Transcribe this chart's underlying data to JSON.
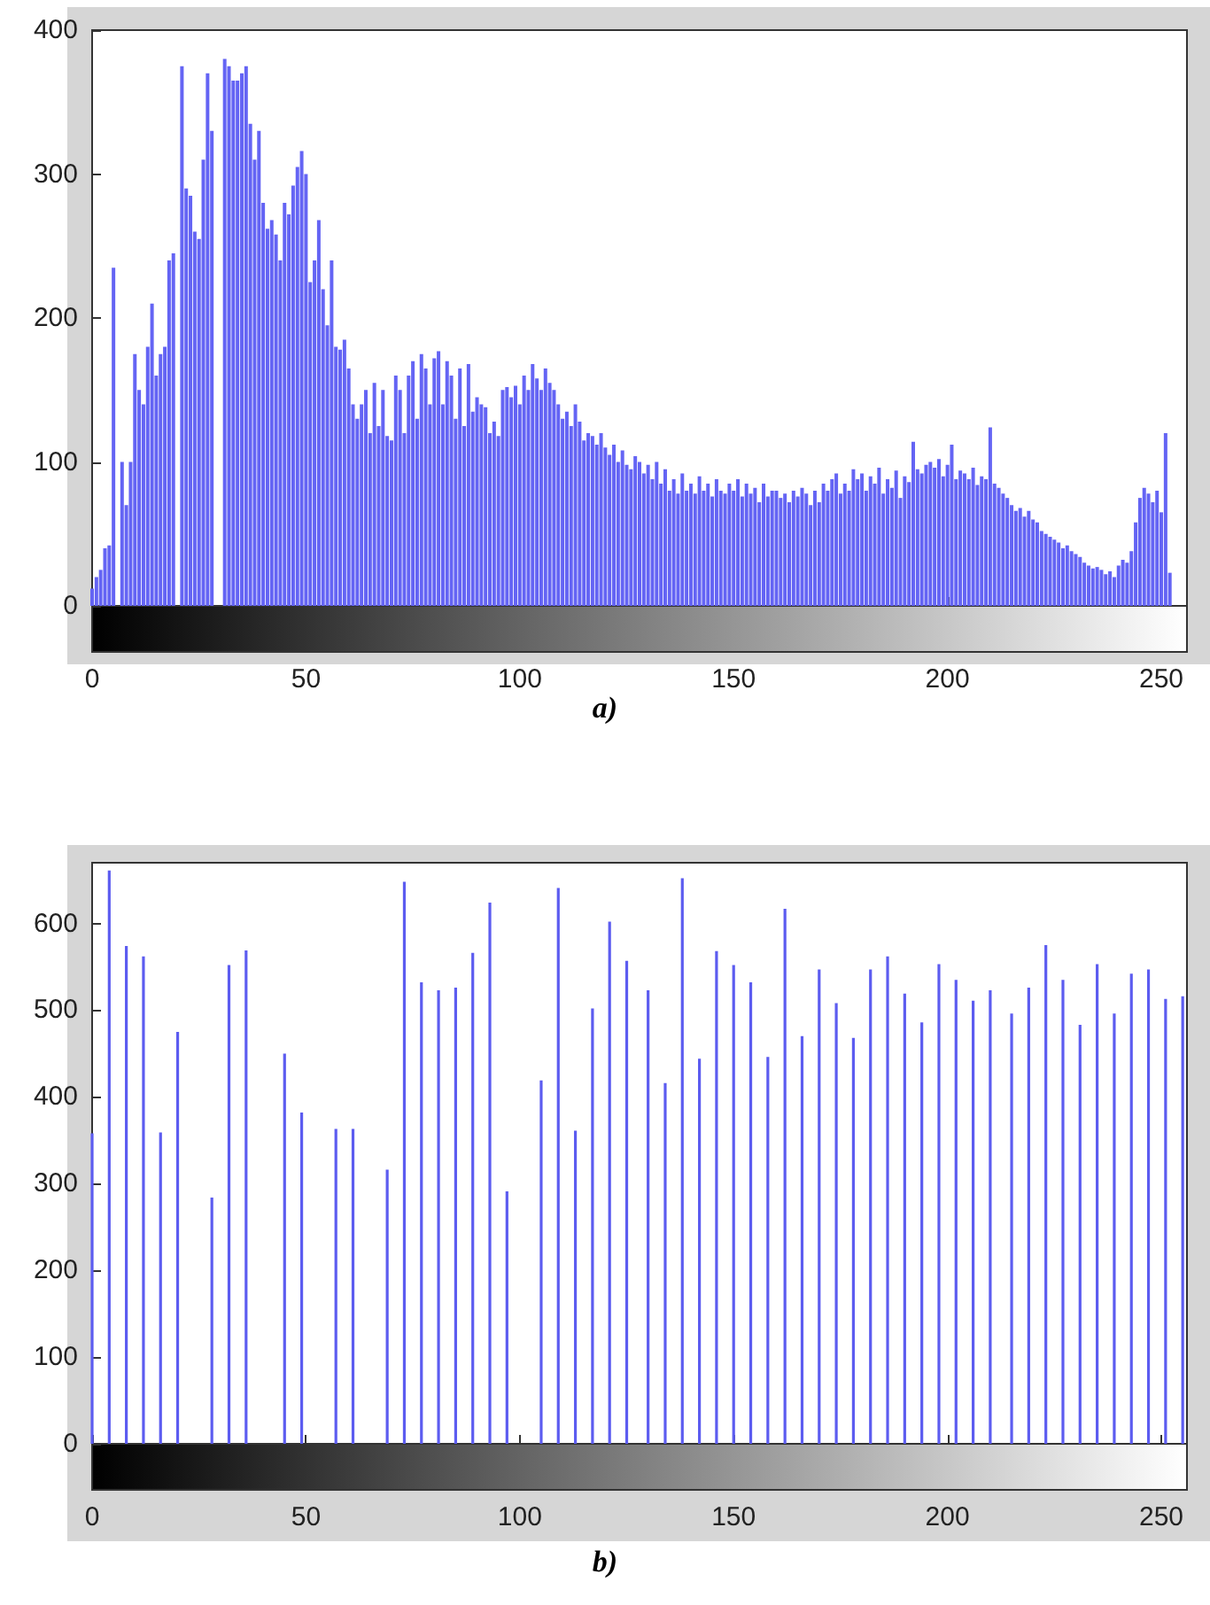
{
  "chart_data": [
    {
      "type": "bar",
      "color": "#6464f4",
      "xlim": [
        0,
        256
      ],
      "xticks": [
        0,
        50,
        100,
        150,
        200,
        250
      ],
      "ylim": [
        0,
        400
      ],
      "yticks": [
        0,
        100,
        200,
        300,
        400
      ],
      "annotations": [
        "a)"
      ],
      "x": [
        0,
        1,
        2,
        3,
        4,
        5,
        6,
        7,
        8,
        9,
        10,
        11,
        12,
        13,
        14,
        15,
        16,
        17,
        18,
        19,
        20,
        21,
        22,
        23,
        24,
        25,
        26,
        27,
        28,
        29,
        30,
        31,
        32,
        33,
        34,
        35,
        36,
        37,
        38,
        39,
        40,
        41,
        42,
        43,
        44,
        45,
        46,
        47,
        48,
        49,
        50,
        51,
        52,
        53,
        54,
        55,
        56,
        57,
        58,
        59,
        60,
        61,
        62,
        63,
        64,
        65,
        66,
        67,
        68,
        69,
        70,
        71,
        72,
        73,
        74,
        75,
        76,
        77,
        78,
        79,
        80,
        81,
        82,
        83,
        84,
        85,
        86,
        87,
        88,
        89,
        90,
        91,
        92,
        93,
        94,
        95,
        96,
        97,
        98,
        99,
        100,
        101,
        102,
        103,
        104,
        105,
        106,
        107,
        108,
        109,
        110,
        111,
        112,
        113,
        114,
        115,
        116,
        117,
        118,
        119,
        120,
        121,
        122,
        123,
        124,
        125,
        126,
        127,
        128,
        129,
        130,
        131,
        132,
        133,
        134,
        135,
        136,
        137,
        138,
        139,
        140,
        141,
        142,
        143,
        144,
        145,
        146,
        147,
        148,
        149,
        150,
        151,
        152,
        153,
        154,
        155,
        156,
        157,
        158,
        159,
        160,
        161,
        162,
        163,
        164,
        165,
        166,
        167,
        168,
        169,
        170,
        171,
        172,
        173,
        174,
        175,
        176,
        177,
        178,
        179,
        180,
        181,
        182,
        183,
        184,
        185,
        186,
        187,
        188,
        189,
        190,
        191,
        192,
        193,
        194,
        195,
        196,
        197,
        198,
        199,
        200,
        201,
        202,
        203,
        204,
        205,
        206,
        207,
        208,
        209,
        210,
        211,
        212,
        213,
        214,
        215,
        216,
        217,
        218,
        219,
        220,
        221,
        222,
        223,
        224,
        225,
        226,
        227,
        228,
        229,
        230,
        231,
        232,
        233,
        234,
        235,
        236,
        237,
        238,
        239,
        240,
        241,
        242,
        243,
        244,
        245,
        246,
        247,
        248,
        249,
        250,
        251,
        252,
        253,
        254,
        255
      ],
      "values": [
        12,
        20,
        25,
        40,
        42,
        235,
        null,
        100,
        70,
        100,
        175,
        150,
        140,
        180,
        210,
        160,
        175,
        180,
        240,
        245,
        null,
        375,
        290,
        285,
        260,
        255,
        310,
        370,
        330,
        null,
        null,
        380,
        375,
        365,
        365,
        370,
        375,
        335,
        310,
        330,
        280,
        262,
        268,
        258,
        240,
        280,
        272,
        292,
        305,
        316,
        300,
        225,
        240,
        268,
        220,
        195,
        240,
        180,
        178,
        185,
        165,
        140,
        130,
        140,
        150,
        120,
        155,
        125,
        150,
        118,
        115,
        160,
        150,
        120,
        160,
        170,
        130,
        175,
        165,
        140,
        172,
        177,
        140,
        170,
        160,
        130,
        165,
        125,
        168,
        135,
        145,
        140,
        138,
        120,
        128,
        118,
        150,
        152,
        145,
        153,
        140,
        160,
        150,
        168,
        158,
        150,
        165,
        155,
        150,
        140,
        130,
        135,
        125,
        140,
        128,
        115,
        120,
        118,
        112,
        120,
        110,
        105,
        112,
        100,
        108,
        98,
        95,
        104,
        100,
        92,
        98,
        88,
        100,
        85,
        95,
        80,
        88,
        78,
        92,
        80,
        85,
        78,
        90,
        80,
        85,
        76,
        88,
        80,
        78,
        85,
        80,
        88,
        76,
        85,
        78,
        82,
        72,
        85,
        76,
        80,
        80,
        75,
        78,
        72,
        80,
        76,
        82,
        78,
        70,
        80,
        72,
        85,
        80,
        88,
        92,
        78,
        85,
        80,
        95,
        88,
        92,
        80,
        90,
        85,
        96,
        78,
        88,
        82,
        94,
        75,
        90,
        86,
        114,
        95,
        92,
        98,
        100,
        96,
        102,
        90,
        98,
        112,
        88,
        94,
        92,
        88,
        96,
        84,
        90,
        88,
        124,
        85,
        82,
        78,
        75,
        70,
        66,
        68,
        62,
        66,
        60,
        58,
        52,
        50,
        48,
        46,
        44,
        40,
        42,
        38,
        36,
        34,
        30,
        28,
        26,
        27,
        25,
        22,
        24,
        20,
        28,
        32,
        30,
        38,
        58,
        75,
        82,
        78,
        72,
        80,
        65,
        120,
        23,
        0,
        0,
        0
      ]
    },
    {
      "type": "bar",
      "color": "#5c5cf0",
      "xlim": [
        0,
        256
      ],
      "xticks": [
        0,
        50,
        100,
        150,
        200,
        250
      ],
      "ylim": [
        0,
        670
      ],
      "yticks": [
        0,
        100,
        200,
        300,
        400,
        500,
        600
      ],
      "annotations": [
        "b)"
      ],
      "x": [
        0,
        4,
        8,
        12,
        16,
        20,
        24,
        28,
        32,
        36,
        40,
        45,
        49,
        53,
        57,
        61,
        65,
        69,
        73,
        77,
        81,
        85,
        89,
        93,
        97,
        101,
        105,
        109,
        113,
        117,
        121,
        125,
        130,
        134,
        138,
        142,
        146,
        150,
        154,
        158,
        162,
        166,
        170,
        174,
        178,
        182,
        186,
        190,
        194,
        198,
        202,
        206,
        210,
        215,
        219,
        223,
        227,
        231,
        235,
        239,
        243,
        247,
        251,
        255
      ],
      "values": [
        358,
        661,
        574,
        562,
        359,
        475,
        null,
        284,
        552,
        569,
        null,
        450,
        382,
        null,
        363,
        363,
        null,
        316,
        648,
        532,
        523,
        526,
        566,
        624,
        291,
        null,
        419,
        641,
        361,
        502,
        602,
        557,
        523,
        416,
        652,
        444,
        568,
        552,
        532,
        446,
        617,
        470,
        547,
        508,
        468,
        547,
        562,
        519,
        486,
        553,
        535,
        511,
        523,
        496,
        526,
        575,
        535,
        483,
        553,
        496,
        542,
        547,
        513,
        516
      ]
    }
  ]
}
